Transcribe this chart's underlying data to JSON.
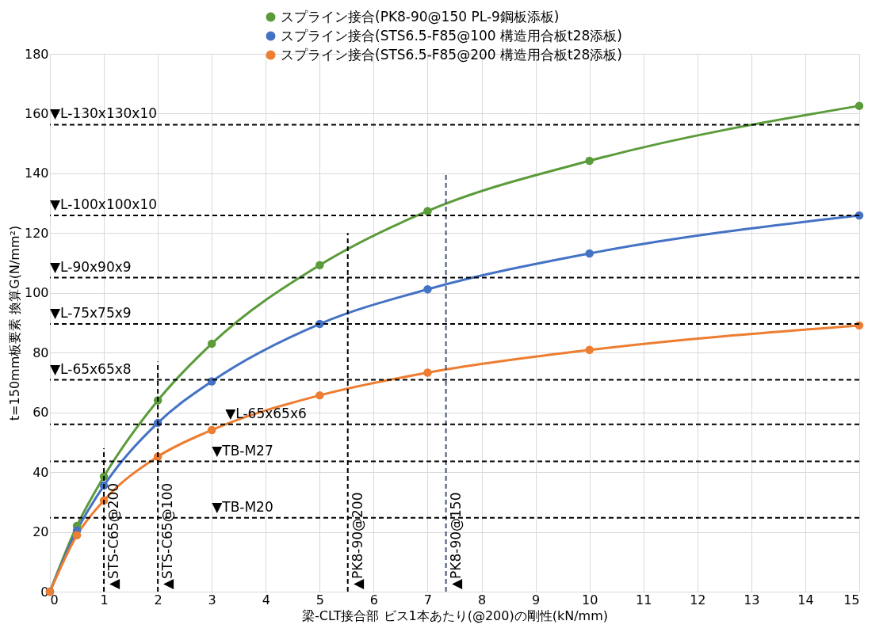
{
  "chart_data": {
    "type": "line",
    "xlabel": "梁-CLT接合部 ビス1本あたり(@200)の剛性(kN/mm)",
    "ylabel": "t=150mm板要素 換算G(N/mm²)",
    "xlim": [
      0,
      15
    ],
    "xticks": [
      0,
      1,
      2,
      3,
      4,
      5,
      6,
      7,
      8,
      9,
      10,
      11,
      12,
      13,
      14,
      15
    ],
    "ylim": [
      0,
      180
    ],
    "yticks": [
      0,
      20,
      40,
      60,
      80,
      100,
      120,
      140,
      160,
      180
    ],
    "grid": true,
    "legend": "top",
    "marker": "circle",
    "line_style": "solid",
    "series": [
      {
        "name": "スプライン接合(PK8-90@150 PL-9鋼板添板)",
        "color": "#5b9b3a",
        "x": [
          0,
          0.5,
          1,
          2,
          3,
          5,
          7,
          10,
          15
        ],
        "values": [
          0,
          22,
          38.5,
          64,
          83,
          109.3,
          127.4,
          144.2,
          162.6
        ]
      },
      {
        "name": "スプライン接合(STS6.5-F85@100 構造用合板t28添板)",
        "color": "#4472c4",
        "x": [
          0,
          0.5,
          1,
          2,
          3,
          5,
          7,
          10,
          15
        ],
        "values": [
          0,
          20.5,
          35.5,
          56.5,
          70.4,
          89.6,
          101.2,
          113.2,
          125.9
        ]
      },
      {
        "name": "スプライン接合(STS6.5-F85@200 構造用合板t28添板)",
        "color": "#ed7d31",
        "x": [
          0,
          0.5,
          1,
          2,
          3,
          5,
          7,
          10,
          15
        ],
        "values": [
          0,
          18.9,
          30.5,
          45.2,
          54.1,
          65.7,
          73.3,
          80.9,
          89.1
        ]
      },
      {
        "type": "line",
        "marker": "none",
        "line_style": "dashed",
        "color": "#000000",
        "x": [
          1,
          1
        ],
        "values": [
          0,
          48
        ]
      },
      {
        "type": "line",
        "marker": "none",
        "line_style": "dashed",
        "color": "#000000",
        "x": [
          2,
          2
        ],
        "values": [
          0,
          77
        ]
      },
      {
        "type": "line",
        "marker": "none",
        "line_style": "dashed",
        "color": "#000000",
        "x": [
          5.52,
          5.52
        ],
        "values": [
          0,
          120
        ]
      },
      {
        "type": "line",
        "marker": "none",
        "line_style": "dashed",
        "color": "#44546a",
        "x": [
          7.34,
          7.34
        ],
        "values": [
          0,
          140
        ]
      }
    ],
    "ref_lines": [
      {
        "axis": "y",
        "value": 156.3,
        "color": "#000000",
        "line_style": "dashed"
      },
      {
        "axis": "y",
        "value": 125.9,
        "color": "#000000",
        "line_style": "dashed"
      },
      {
        "axis": "y",
        "value": 105.1,
        "color": "#000000",
        "line_style": "dashed"
      },
      {
        "axis": "y",
        "value": 89.6,
        "color": "#000000",
        "line_style": "dashed"
      },
      {
        "axis": "y",
        "value": 70.9,
        "color": "#000000",
        "line_style": "dashed"
      },
      {
        "axis": "y",
        "value": 56.0,
        "color": "#000000",
        "line_style": "dashed"
      },
      {
        "axis": "y",
        "value": 43.6,
        "color": "#000000",
        "line_style": "dashed"
      },
      {
        "axis": "y",
        "value": 24.7,
        "color": "#000000",
        "line_style": "dashed"
      }
    ],
    "annotations": [
      {
        "text": "▼L-130x130x10",
        "x": 0,
        "y": 156.3
      },
      {
        "text": "▼L-100x100x10",
        "x": 0,
        "y": 125.9
      },
      {
        "text": "▼L-90x90x9",
        "x": 0,
        "y": 105.1
      },
      {
        "text": "▼L-75x75x9",
        "x": 0,
        "y": 89.6
      },
      {
        "text": "▼L-65x65x8",
        "x": 0,
        "y": 70.9
      },
      {
        "text": "▼L-65x65x6",
        "x": 3.25,
        "y": 56.0
      },
      {
        "text": "▼TB-M27",
        "x": 3,
        "y": 43.6
      },
      {
        "text": "▼TB-M20",
        "x": 3,
        "y": 24.7
      },
      {
        "text": "▲STS-C65@200",
        "x": 1,
        "y": 0
      },
      {
        "text": "▲STS-C65@100",
        "x": 2,
        "y": 0
      },
      {
        "text": "▲PK8-90@200",
        "x": 5.52,
        "y": 0
      },
      {
        "text": "▲PK8-90@150",
        "x": 7.34,
        "y": 0
      }
    ]
  }
}
